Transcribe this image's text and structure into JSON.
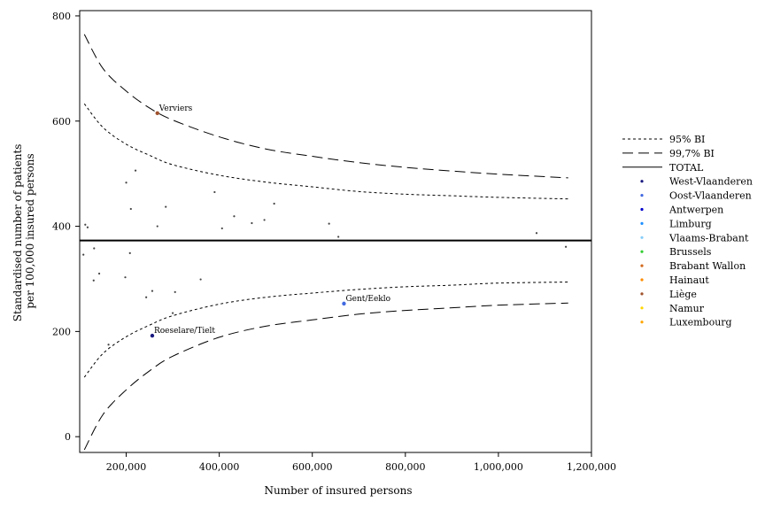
{
  "chart_data": {
    "type": "scatter",
    "title": "",
    "xlabel": "Number of insured persons",
    "ylabel_lines": [
      "Standardised number of patients",
      "per 100,000 insured persons"
    ],
    "xlim": [
      100000,
      1200000
    ],
    "ylim": [
      -30,
      810
    ],
    "x_ticks": [
      200000,
      400000,
      600000,
      800000,
      1000000,
      1200000
    ],
    "x_tick_labels": [
      "200,000",
      "400,000",
      "600,000",
      "800,000",
      "1,000,000",
      "1,200,000"
    ],
    "y_ticks": [
      0,
      200,
      400,
      600,
      800
    ],
    "y_tick_labels": [
      "0",
      "200",
      "400",
      "600",
      "800"
    ],
    "grid": false,
    "legend_position": "right",
    "total_rate": 373,
    "limits": {
      "x": [
        110000,
        150000,
        200000,
        250000,
        300000,
        400000,
        500000,
        600000,
        700000,
        800000,
        900000,
        1000000,
        1150000
      ],
      "ci95_upper": [
        633,
        588,
        556,
        535,
        517,
        497,
        484,
        475,
        466,
        461,
        458,
        455,
        452
      ],
      "ci95_lower": [
        113,
        158,
        190,
        212,
        230,
        252,
        265,
        273,
        280,
        285,
        288,
        292,
        294
      ],
      "ci997_upper": [
        765,
        700,
        657,
        625,
        602,
        570,
        547,
        533,
        521,
        512,
        505,
        499,
        492
      ],
      "ci997_lower": [
        -25,
        42,
        89,
        125,
        153,
        189,
        210,
        222,
        233,
        240,
        245,
        250,
        254
      ]
    },
    "legend_items": [
      {
        "key": "ci95",
        "label": "95% BI",
        "style": "short-dash"
      },
      {
        "key": "ci997",
        "label": "99,7% BI",
        "style": "long-dash"
      },
      {
        "key": "total",
        "label": "TOTAL",
        "style": "solid"
      },
      {
        "key": "west_vl",
        "label": "West-Vlaanderen",
        "color": "#1a1a80",
        "style": "dot"
      },
      {
        "key": "oost_vl",
        "label": "Oost-Vlaanderen",
        "color": "#4169e1",
        "style": "dot"
      },
      {
        "key": "antwerpen",
        "label": "Antwerpen",
        "color": "#0000cd",
        "style": "dot"
      },
      {
        "key": "limburg",
        "label": "Limburg",
        "color": "#1e90ff",
        "style": "dot"
      },
      {
        "key": "vl_brabant",
        "label": "Vlaams-Brabant",
        "color": "#87cefa",
        "style": "dot"
      },
      {
        "key": "brussels",
        "label": "Brussels",
        "color": "#32cd32",
        "style": "dot"
      },
      {
        "key": "brabant_wallon",
        "label": "Brabant Wallon",
        "color": "#d2691e",
        "style": "dot"
      },
      {
        "key": "hainaut",
        "label": "Hainaut",
        "color": "#ff8c00",
        "style": "dot"
      },
      {
        "key": "liege",
        "label": "Liège",
        "color": "#a0522d",
        "style": "dot"
      },
      {
        "key": "namur",
        "label": "Namur",
        "color": "#ffd700",
        "style": "dot"
      },
      {
        "key": "luxembourg",
        "label": "Luxembourg",
        "color": "#ffa500",
        "style": "dot"
      }
    ],
    "points": [
      {
        "x": 267000,
        "y": 615,
        "label": "Verviers",
        "color": "#a0522d"
      },
      {
        "x": 668000,
        "y": 253,
        "label": "Gent/Eeklo",
        "color": "#4169e1"
      },
      {
        "x": 256000,
        "y": 192,
        "label": "Roeselare/Tielt",
        "color": "#1a1a80"
      },
      {
        "x": 220000,
        "y": 506,
        "color": "#444444"
      },
      {
        "x": 200000,
        "y": 483,
        "color": "#444444"
      },
      {
        "x": 390000,
        "y": 465,
        "color": "#444444"
      },
      {
        "x": 518000,
        "y": 443,
        "color": "#444444"
      },
      {
        "x": 285000,
        "y": 437,
        "color": "#444444"
      },
      {
        "x": 210000,
        "y": 433,
        "color": "#444444"
      },
      {
        "x": 432000,
        "y": 419,
        "color": "#444444"
      },
      {
        "x": 497000,
        "y": 412,
        "color": "#444444"
      },
      {
        "x": 470000,
        "y": 406,
        "color": "#444444"
      },
      {
        "x": 636000,
        "y": 405,
        "color": "#444444"
      },
      {
        "x": 112000,
        "y": 403,
        "color": "#444444"
      },
      {
        "x": 117000,
        "y": 398,
        "color": "#444444"
      },
      {
        "x": 267000,
        "y": 400,
        "color": "#444444"
      },
      {
        "x": 406000,
        "y": 396,
        "color": "#444444"
      },
      {
        "x": 1082000,
        "y": 387,
        "color": "#444444"
      },
      {
        "x": 656000,
        "y": 380,
        "color": "#444444"
      },
      {
        "x": 1145000,
        "y": 361,
        "color": "#444444"
      },
      {
        "x": 131000,
        "y": 358,
        "color": "#444444"
      },
      {
        "x": 108000,
        "y": 346,
        "color": "#444444"
      },
      {
        "x": 208000,
        "y": 349,
        "color": "#444444"
      },
      {
        "x": 142000,
        "y": 310,
        "color": "#444444"
      },
      {
        "x": 198000,
        "y": 303,
        "color": "#444444"
      },
      {
        "x": 360000,
        "y": 299,
        "color": "#444444"
      },
      {
        "x": 130000,
        "y": 297,
        "color": "#444444"
      },
      {
        "x": 256000,
        "y": 277,
        "color": "#444444"
      },
      {
        "x": 305000,
        "y": 275,
        "color": "#444444"
      },
      {
        "x": 243000,
        "y": 265,
        "color": "#444444"
      },
      {
        "x": 300000,
        "y": 235,
        "color": "#444444"
      },
      {
        "x": 162000,
        "y": 175,
        "color": "#444444"
      }
    ]
  }
}
